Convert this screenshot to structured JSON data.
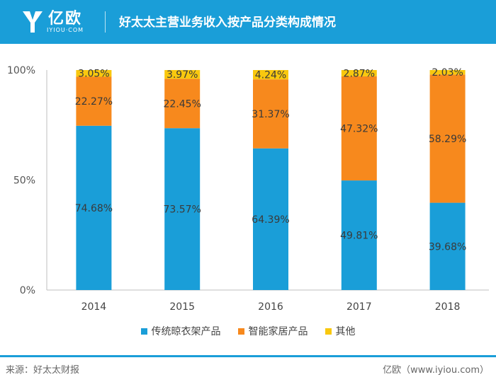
{
  "header": {
    "logo_text": "亿欧",
    "logo_sub": "IYIOU·COM",
    "title": "好太太主营业务收入按产品分类构成情况"
  },
  "colors": {
    "header_bg": "#1a9ed8",
    "series_1": "#1a9ed8",
    "series_2": "#f7891d",
    "series_3": "#f9c80e"
  },
  "chart_data": {
    "type": "bar",
    "stacked": true,
    "categories": [
      "2014",
      "2015",
      "2016",
      "2017",
      "2018"
    ],
    "series": [
      {
        "name": "传统晾衣架产品",
        "values": [
          74.68,
          73.57,
          64.39,
          49.81,
          39.68
        ],
        "labels": [
          "74.68%",
          "73.57%",
          "64.39%",
          "49.81%",
          "39.68%"
        ]
      },
      {
        "name": "智能家居产品",
        "values": [
          22.27,
          22.45,
          31.37,
          47.32,
          58.29
        ],
        "labels": [
          "22.27%",
          "22.45%",
          "31.37%",
          "47.32%",
          "58.29%"
        ]
      },
      {
        "name": "其他",
        "values": [
          3.05,
          3.97,
          4.24,
          2.87,
          2.03
        ],
        "labels": [
          "3.05%",
          "3.97%",
          "4.24%",
          "2.87%",
          "2.03%"
        ]
      }
    ],
    "y_ticks": [
      "0%",
      "50%",
      "100%"
    ],
    "ylim": [
      0,
      100
    ],
    "title": "",
    "xlabel": "",
    "ylabel": "",
    "legend_position": "bottom"
  },
  "footer": {
    "source": "来源：好太太财报",
    "credit": "亿欧（www.iyiou.com）"
  }
}
